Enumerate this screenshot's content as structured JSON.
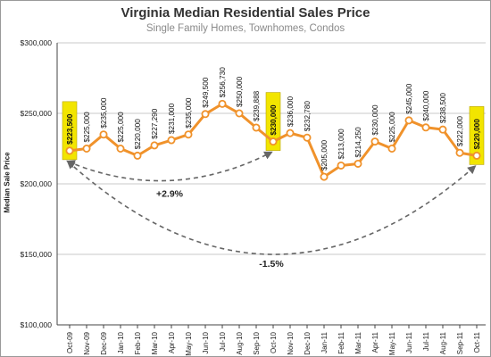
{
  "chart_data": {
    "type": "line",
    "title": "Virginia Median Residential Sales Price",
    "subtitle": "Single Family Homes, Townhomes, Condos",
    "xlabel": "",
    "ylabel": "Median Sale Price",
    "ylim": [
      100000,
      300000
    ],
    "yticks": [
      {
        "value": 100000,
        "label": "$100,000"
      },
      {
        "value": 150000,
        "label": "$150,000"
      },
      {
        "value": 200000,
        "label": "$200,000"
      },
      {
        "value": 250000,
        "label": "$250,000"
      },
      {
        "value": 300000,
        "label": "$300,000"
      }
    ],
    "grid": "horizontal",
    "line_color": "#f0922b",
    "highlight_color": "#f2e500",
    "arrow_color": "#666666",
    "categories": [
      "Oct-09",
      "Nov-09",
      "Dec-09",
      "Jan-10",
      "Feb-10",
      "Mar-10",
      "Apr-10",
      "May-10",
      "Jun-10",
      "Jul-10",
      "Aug-10",
      "Sep-10",
      "Oct-10",
      "Nov-10",
      "Dec-10",
      "Jan-11",
      "Feb-11",
      "Mar-11",
      "Apr-11",
      "May-11",
      "Jun-11",
      "Jul-11",
      "Aug-11",
      "Sep-11",
      "Oct-11"
    ],
    "values": [
      223500,
      225000,
      235000,
      225000,
      220000,
      227290,
      231000,
      235000,
      249500,
      256730,
      250000,
      239888,
      230000,
      236000,
      232780,
      205000,
      213000,
      214250,
      230000,
      225000,
      245000,
      240000,
      238500,
      222000,
      220000
    ],
    "labels": [
      "$223,500",
      "$225,000",
      "$235,000",
      "$225,000",
      "$220,000",
      "$227,290",
      "$231,000",
      "$235,000",
      "$249,500",
      "$256,730",
      "$250,000",
      "$239,888",
      "$230,000",
      "$236,000",
      "$232,780",
      "$205,000",
      "$213,000",
      "$214,250",
      "$230,000",
      "$225,000",
      "$245,000",
      "$240,000",
      "$238,500",
      "$222,000",
      "$220,000"
    ],
    "highlighted": [
      "Oct-09",
      "Oct-10",
      "Oct-11"
    ],
    "annotations": [
      {
        "from": "Oct-09",
        "to": "Oct-10",
        "text": "+2.9%"
      },
      {
        "from": "Oct-09",
        "to": "Oct-11",
        "text": "-1.5%"
      }
    ]
  }
}
